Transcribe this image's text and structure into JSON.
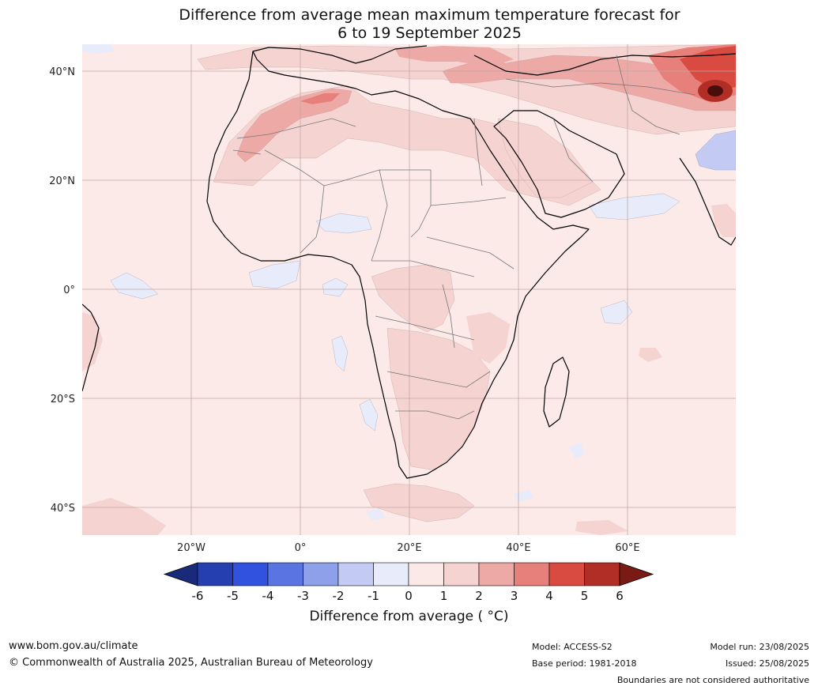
{
  "title": {
    "line1": "Difference from average mean maximum temperature forecast for",
    "line2": "6 to 19 September 2025"
  },
  "map": {
    "lat_labels": [
      "40°N",
      "20°N",
      "0°",
      "20°S",
      "40°S"
    ],
    "lon_labels": [
      "20°W",
      "0°",
      "20°E",
      "40°E",
      "60°E"
    ],
    "boundaries_note": "Boundaries are not considered authoritative"
  },
  "colorbar": {
    "title": "Difference from average ( °C)",
    "ticks": [
      "-6",
      "-5",
      "-4",
      "-3",
      "-2",
      "-1",
      "0",
      "1",
      "2",
      "3",
      "4",
      "5",
      "6"
    ],
    "colors": [
      "#1a2a7a",
      "#263fb0",
      "#3152df",
      "#5a74e2",
      "#8da0e9",
      "#c3cbf4",
      "#e7ebfa",
      "#fbe9e7",
      "#f5d3d0",
      "#eda9a5",
      "#e7807a",
      "#d94a40",
      "#b02e25",
      "#7a1a14"
    ]
  },
  "footer": {
    "website": "www.bom.gov.au/climate",
    "copyright": "© Commonwealth of Australia 2025, Australian Bureau of Meteorology",
    "model": "Model: ACCESS-S2",
    "base_period": "Base period: 1981-2018",
    "model_run": "Model run: 23/08/2025",
    "issued": "Issued: 25/08/2025"
  }
}
